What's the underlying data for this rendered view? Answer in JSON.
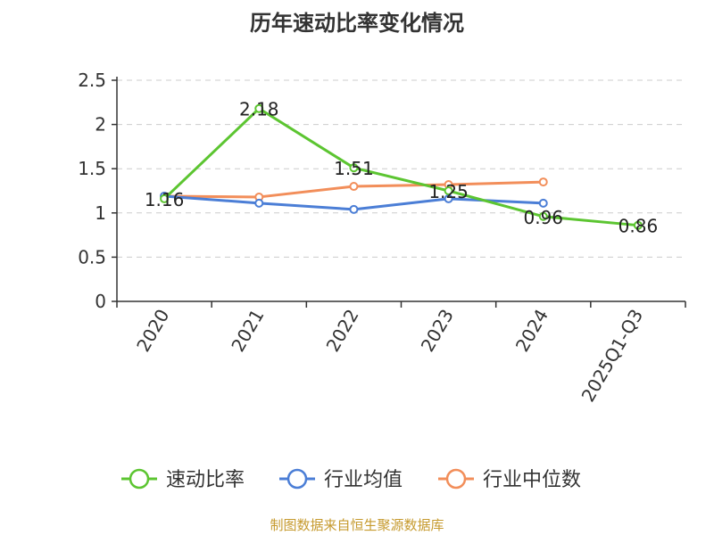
{
  "page": {
    "title": "历年速动比率变化情况",
    "source": "制图数据来自恒生聚源数据库"
  },
  "chart_data": {
    "type": "line",
    "title": "历年速动比率变化情况",
    "categories": [
      "2020",
      "2021",
      "2022",
      "2023",
      "2024",
      "2025Q1-Q3"
    ],
    "ylim": [
      0,
      2.5
    ],
    "yticks": [
      "0",
      "0.5",
      "1",
      "1.5",
      "2",
      "2.5"
    ],
    "grid": true,
    "legend_position": "bottom",
    "series": [
      {
        "name": "速动比率",
        "color": "#5cc531",
        "values": [
          1.16,
          2.18,
          1.51,
          1.25,
          0.96,
          0.86
        ],
        "labels": [
          "1.16",
          "2.18",
          "1.51",
          "1.25",
          "0.96",
          "0.86"
        ]
      },
      {
        "name": "行业均值",
        "color": "#4b7ed6",
        "values": [
          1.19,
          1.11,
          1.04,
          1.16,
          1.11,
          null
        ]
      },
      {
        "name": "行业中位数",
        "color": "#f28e5a",
        "values": [
          1.19,
          1.18,
          1.3,
          1.32,
          1.35,
          null
        ]
      }
    ]
  }
}
